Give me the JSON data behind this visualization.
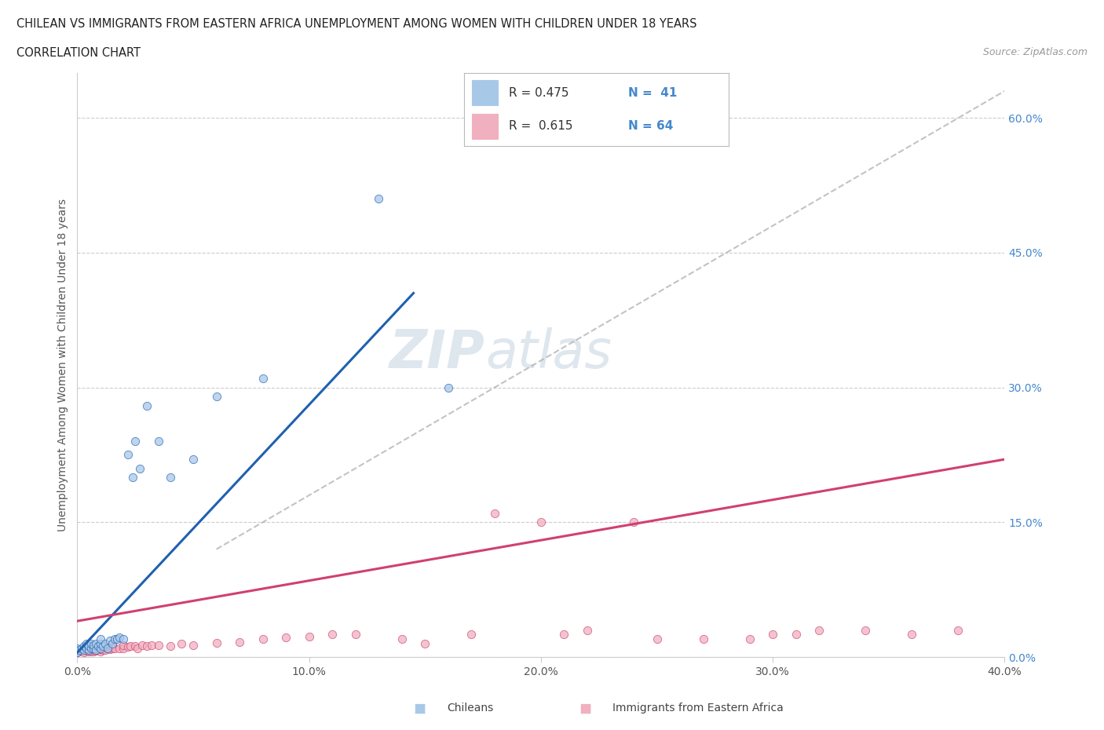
{
  "title_line1": "CHILEAN VS IMMIGRANTS FROM EASTERN AFRICA UNEMPLOYMENT AMONG WOMEN WITH CHILDREN UNDER 18 YEARS",
  "title_line2": "CORRELATION CHART",
  "source_text": "Source: ZipAtlas.com",
  "ylabel": "Unemployment Among Women with Children Under 18 years",
  "xlim": [
    0.0,
    0.4
  ],
  "ylim": [
    0.0,
    0.65
  ],
  "x_ticks": [
    0.0,
    0.1,
    0.2,
    0.3,
    0.4
  ],
  "x_tick_labels": [
    "0.0%",
    "10.0%",
    "20.0%",
    "30.0%",
    "40.0%"
  ],
  "y_ticks": [
    0.0,
    0.15,
    0.3,
    0.45,
    0.6
  ],
  "y_tick_labels": [
    "0.0%",
    "15.0%",
    "30.0%",
    "45.0%",
    "60.0%"
  ],
  "blue_color": "#a8c8e8",
  "blue_line_color": "#2060b0",
  "pink_color": "#f0b0c0",
  "pink_line_color": "#d04070",
  "dash_color": "#aaaaaa",
  "watermark_color": "#d0dce8",
  "chileans_x": [
    0.0,
    0.0,
    0.001,
    0.002,
    0.003,
    0.003,
    0.004,
    0.004,
    0.005,
    0.005,
    0.006,
    0.006,
    0.007,
    0.007,
    0.008,
    0.008,
    0.009,
    0.01,
    0.01,
    0.01,
    0.011,
    0.012,
    0.013,
    0.014,
    0.015,
    0.016,
    0.017,
    0.018,
    0.02,
    0.022,
    0.024,
    0.025,
    0.027,
    0.03,
    0.035,
    0.04,
    0.05,
    0.06,
    0.08,
    0.13,
    0.16
  ],
  "chileans_y": [
    0.005,
    0.01,
    0.008,
    0.01,
    0.008,
    0.012,
    0.01,
    0.015,
    0.008,
    0.012,
    0.01,
    0.015,
    0.01,
    0.013,
    0.008,
    0.015,
    0.012,
    0.01,
    0.015,
    0.02,
    0.012,
    0.015,
    0.01,
    0.018,
    0.015,
    0.02,
    0.02,
    0.022,
    0.02,
    0.225,
    0.2,
    0.24,
    0.21,
    0.28,
    0.24,
    0.2,
    0.22,
    0.29,
    0.31,
    0.51,
    0.3
  ],
  "immigrants_x": [
    0.0,
    0.0,
    0.001,
    0.002,
    0.003,
    0.004,
    0.004,
    0.005,
    0.005,
    0.005,
    0.006,
    0.006,
    0.007,
    0.007,
    0.008,
    0.008,
    0.009,
    0.01,
    0.01,
    0.011,
    0.012,
    0.013,
    0.014,
    0.015,
    0.015,
    0.016,
    0.018,
    0.02,
    0.02,
    0.022,
    0.023,
    0.025,
    0.026,
    0.028,
    0.03,
    0.032,
    0.035,
    0.04,
    0.045,
    0.05,
    0.06,
    0.07,
    0.08,
    0.09,
    0.1,
    0.11,
    0.12,
    0.14,
    0.15,
    0.17,
    0.18,
    0.2,
    0.21,
    0.22,
    0.24,
    0.25,
    0.27,
    0.29,
    0.3,
    0.31,
    0.32,
    0.34,
    0.36,
    0.38
  ],
  "immigrants_y": [
    0.005,
    0.008,
    0.006,
    0.007,
    0.005,
    0.007,
    0.01,
    0.006,
    0.008,
    0.01,
    0.006,
    0.009,
    0.006,
    0.008,
    0.007,
    0.01,
    0.008,
    0.006,
    0.009,
    0.008,
    0.008,
    0.01,
    0.009,
    0.01,
    0.012,
    0.01,
    0.01,
    0.01,
    0.013,
    0.011,
    0.012,
    0.012,
    0.01,
    0.013,
    0.012,
    0.013,
    0.013,
    0.012,
    0.015,
    0.013,
    0.016,
    0.017,
    0.02,
    0.022,
    0.023,
    0.025,
    0.025,
    0.02,
    0.015,
    0.025,
    0.16,
    0.15,
    0.025,
    0.03,
    0.15,
    0.02,
    0.02,
    0.02,
    0.025,
    0.025,
    0.03,
    0.03,
    0.025,
    0.03
  ],
  "blue_line_x": [
    0.0,
    0.145
  ],
  "blue_line_y": [
    0.005,
    0.405
  ],
  "pink_line_x": [
    0.0,
    0.4
  ],
  "pink_line_y": [
    0.04,
    0.22
  ],
  "dash_line_x": [
    0.06,
    0.4
  ],
  "dash_line_y": [
    0.12,
    0.63
  ]
}
